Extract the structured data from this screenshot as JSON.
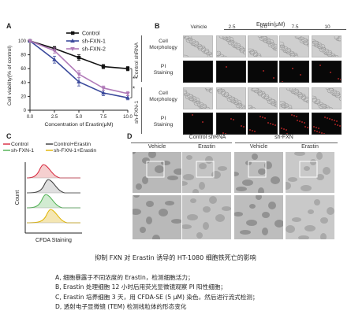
{
  "panels": {
    "a": {
      "letter": "A"
    },
    "b": {
      "letter": "B",
      "treatment": "Erastin(μM)",
      "columns": [
        "Vehicle",
        "2.5",
        "5.0",
        "7.5",
        "10"
      ],
      "groups": [
        "Control shRNA",
        "sh-FXN-1"
      ],
      "row_labels": [
        "Cell\nMorphology",
        "PI\nStaining",
        "Cell\nMorphology",
        "PI\nStaining"
      ]
    },
    "c": {
      "letter": "C",
      "legend": [
        "Control",
        "Control+Erastin",
        "sh-FXN-1",
        "sh-FXN-1+Erastin"
      ],
      "colors": [
        "#d7263d",
        "#3a3a3a",
        "#4caf50",
        "#e0b400"
      ],
      "ylabel": "Count",
      "xlabel": "CFDA Staining"
    },
    "d": {
      "letter": "D",
      "groups": [
        "Control shRNA",
        "sh-FXN"
      ],
      "columns": [
        "Vehicle",
        "Erastin",
        "Vehicle",
        "Erastin"
      ]
    }
  },
  "chart_data": {
    "type": "line",
    "xlabel": "Concentration of Erastin(μM)",
    "ylabel": "Cell viability(% of control)",
    "x": [
      0,
      2.5,
      5.0,
      7.5,
      10.0
    ],
    "xticks": [
      "0.0",
      "2.5",
      "5.0",
      "7.5",
      "10.0"
    ],
    "yticks": [
      "0",
      "20",
      "40",
      "60",
      "80",
      "100"
    ],
    "ylim": [
      0,
      100
    ],
    "xlim": [
      0,
      10
    ],
    "legend_position": "top-right",
    "significance": [
      "*",
      "**"
    ],
    "series": [
      {
        "name": "Control",
        "color": "#111111",
        "values": [
          100,
          89,
          76,
          63,
          60
        ]
      },
      {
        "name": "sh-FXN-1",
        "color": "#3b4a9c",
        "values": [
          100,
          73,
          41,
          25,
          18
        ]
      },
      {
        "name": "sh-FXN-2",
        "color": "#b07ab8",
        "values": [
          100,
          86,
          52,
          32,
          24
        ]
      }
    ]
  },
  "caption": {
    "title": "抑制 FXN 对 Erastin 诱导的 HT-1080 细胞铁死亡的影响",
    "lines": [
      "A, 细胞暴露于不同浓度的 Erastin，检测细胞活力；",
      "B, Erastin 处理细胞 12 小时后用荧光显微镜观察 PI 阳性细胞；",
      "C, Erastin 培养细胞 3 天，用 CFDA-SE (5 μM) 染色，然后进行流式检测；",
      "D, 透射电子显微镜 (TEM) 检测线粒体的形态变化"
    ]
  }
}
